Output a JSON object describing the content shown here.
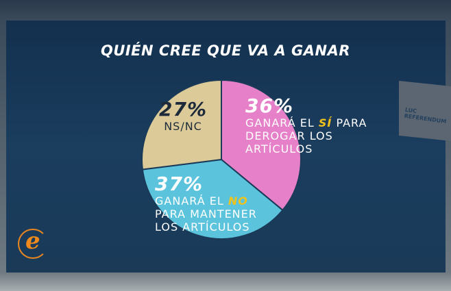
{
  "title": "QUIÉN CREE QUE VA A GANAR",
  "background_sign": {
    "line1": "LUC",
    "line2": "REFERENDUM"
  },
  "chart_data": {
    "type": "pie",
    "title": "QUIÉN CREE QUE VA A GANAR",
    "slices": [
      {
        "label_pre": "GANARÁ EL ",
        "label_hl": "SÍ",
        "label_post": " PARA DEROGAR LOS ARTÍCULOS",
        "value": 36,
        "value_label": "36%",
        "color": "#e680c9"
      },
      {
        "label_pre": "GANARÁ EL ",
        "label_hl": "NO",
        "label_post": " PARA MANTENER LOS ARTÍCULOS",
        "value": 37,
        "value_label": "37%",
        "color": "#5cc3dc"
      },
      {
        "label_pre": "NS/NC",
        "label_hl": "",
        "label_post": "",
        "value": 27,
        "value_label": "27%",
        "color": "#dccb98"
      }
    ]
  },
  "colors": {
    "highlight": "#f1c31a",
    "panel": "#183a5a",
    "logo": "#f08a1c"
  }
}
